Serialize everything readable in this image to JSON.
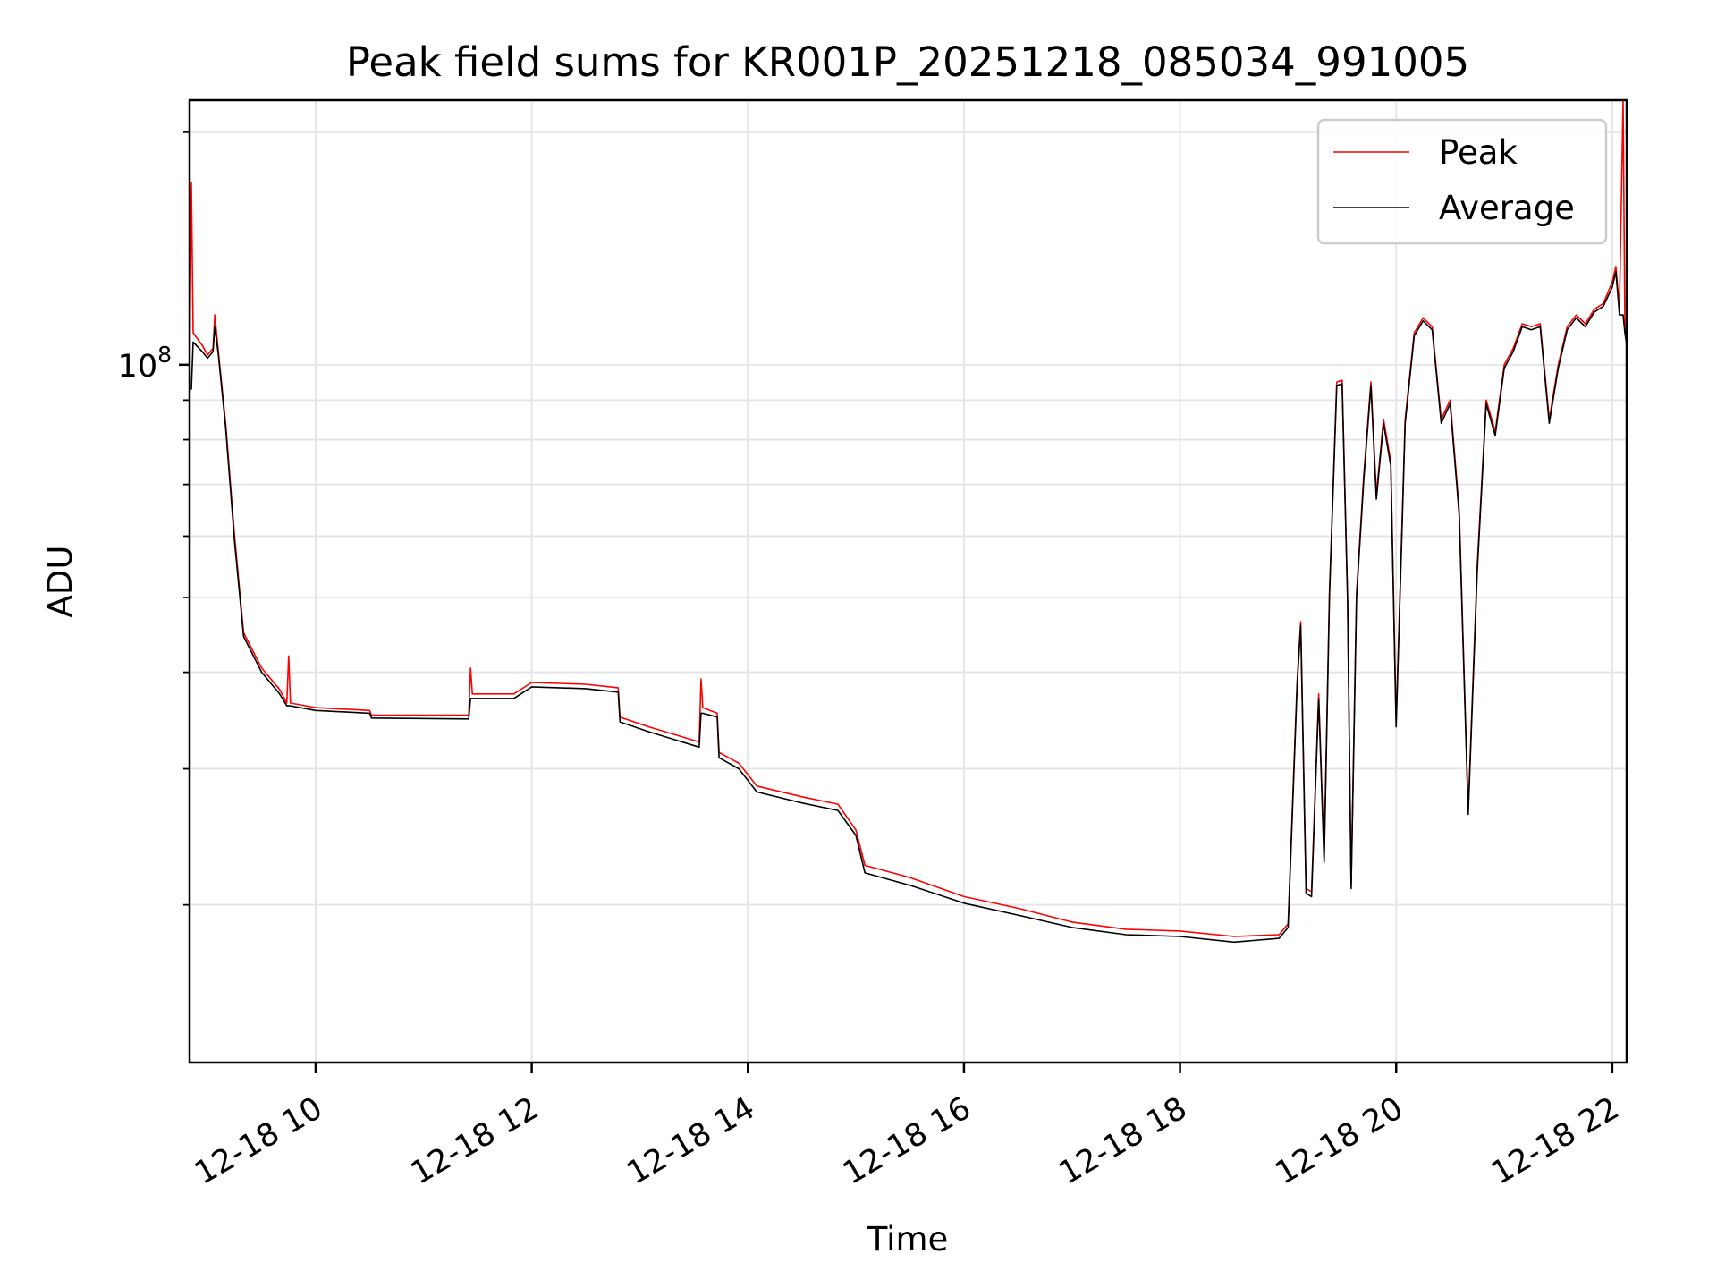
{
  "chart_data": {
    "type": "line",
    "title": "Peak field sums for KR001P_20251218_085034_991005",
    "xlabel": "Time",
    "ylabel": "ADU",
    "y_scale": "log",
    "grid": true,
    "legend_position": "top-right",
    "x_tick_labels": [
      "12-18 10",
      "12-18 12",
      "12-18 14",
      "12-18 16",
      "12-18 18",
      "12-18 20",
      "12-18 22"
    ],
    "y_tick_labels": [
      {
        "base": "10",
        "exponent": "8",
        "value": 100000000
      }
    ],
    "xlim": [
      "2025-12-18 08:50",
      "2025-12-18 22:08"
    ],
    "ylim": [
      12500000,
      220000000
    ],
    "series": [
      {
        "name": "Peak",
        "color": "#ff0000",
        "points": [
          [
            "2025-12-18 08:50",
            94000000
          ],
          [
            "2025-12-18 08:51",
            172000000
          ],
          [
            "2025-12-18 08:52",
            110000000
          ],
          [
            "2025-12-18 08:57",
            106000000
          ],
          [
            "2025-12-18 09:00",
            103000000
          ],
          [
            "2025-12-18 09:03",
            105000000
          ],
          [
            "2025-12-18 09:04",
            116000000
          ],
          [
            "2025-12-18 09:06",
            104000000
          ],
          [
            "2025-12-18 09:10",
            84000000
          ],
          [
            "2025-12-18 09:15",
            60000000
          ],
          [
            "2025-12-18 09:20",
            45000000
          ],
          [
            "2025-12-18 09:30",
            40500000
          ],
          [
            "2025-12-18 09:40",
            38000000
          ],
          [
            "2025-12-18 09:44",
            36500000
          ],
          [
            "2025-12-18 09:45",
            42000000
          ],
          [
            "2025-12-18 09:46",
            36500000
          ],
          [
            "2025-12-18 10:00",
            36000000
          ],
          [
            "2025-12-18 10:30",
            35700000
          ],
          [
            "2025-12-18 10:31",
            35200000
          ],
          [
            "2025-12-18 11:25",
            35200000
          ],
          [
            "2025-12-18 11:26",
            40500000
          ],
          [
            "2025-12-18 11:27",
            37500000
          ],
          [
            "2025-12-18 11:50",
            37500000
          ],
          [
            "2025-12-18 12:00",
            38800000
          ],
          [
            "2025-12-18 12:30",
            38600000
          ],
          [
            "2025-12-18 12:48",
            38200000
          ],
          [
            "2025-12-18 12:49",
            35000000
          ],
          [
            "2025-12-18 13:05",
            34000000
          ],
          [
            "2025-12-18 13:33",
            32500000
          ],
          [
            "2025-12-18 13:34",
            39200000
          ],
          [
            "2025-12-18 13:35",
            36000000
          ],
          [
            "2025-12-18 13:43",
            35400000
          ],
          [
            "2025-12-18 13:44",
            31500000
          ],
          [
            "2025-12-18 13:55",
            30500000
          ],
          [
            "2025-12-18 14:05",
            28500000
          ],
          [
            "2025-12-18 14:30",
            27600000
          ],
          [
            "2025-12-18 14:50",
            27000000
          ],
          [
            "2025-12-18 15:00",
            25000000
          ],
          [
            "2025-12-18 15:05",
            22500000
          ],
          [
            "2025-12-18 15:30",
            21700000
          ],
          [
            "2025-12-18 16:00",
            20500000
          ],
          [
            "2025-12-18 16:30",
            19800000
          ],
          [
            "2025-12-18 17:00",
            19000000
          ],
          [
            "2025-12-18 17:30",
            18600000
          ],
          [
            "2025-12-18 18:00",
            18500000
          ],
          [
            "2025-12-18 18:30",
            18200000
          ],
          [
            "2025-12-18 18:55",
            18300000
          ],
          [
            "2025-12-18 19:00",
            18900000
          ],
          [
            "2025-12-18 19:05",
            39000000
          ],
          [
            "2025-12-18 19:07",
            46500000
          ],
          [
            "2025-12-18 19:10",
            21000000
          ],
          [
            "2025-12-18 19:13",
            20800000
          ],
          [
            "2025-12-18 19:17",
            37500000
          ],
          [
            "2025-12-18 19:20",
            23000000
          ],
          [
            "2025-12-18 19:23",
            51000000
          ],
          [
            "2025-12-18 19:27",
            95000000
          ],
          [
            "2025-12-18 19:30",
            95500000
          ],
          [
            "2025-12-18 19:33",
            50000000
          ],
          [
            "2025-12-18 19:35",
            21200000
          ],
          [
            "2025-12-18 19:38",
            50500000
          ],
          [
            "2025-12-18 19:42",
            72000000
          ],
          [
            "2025-12-18 19:46",
            95000000
          ],
          [
            "2025-12-18 19:49",
            68000000
          ],
          [
            "2025-12-18 19:53",
            85000000
          ],
          [
            "2025-12-18 19:57",
            75000000
          ],
          [
            "2025-12-18 20:00",
            34500000
          ],
          [
            "2025-12-18 20:05",
            85000000
          ],
          [
            "2025-12-18 20:10",
            110000000
          ],
          [
            "2025-12-18 20:15",
            115000000
          ],
          [
            "2025-12-18 20:20",
            112000000
          ],
          [
            "2025-12-18 20:25",
            85000000
          ],
          [
            "2025-12-18 20:30",
            90000000
          ],
          [
            "2025-12-18 20:35",
            65000000
          ],
          [
            "2025-12-18 20:40",
            26500000
          ],
          [
            "2025-12-18 20:45",
            55000000
          ],
          [
            "2025-12-18 20:50",
            90000000
          ],
          [
            "2025-12-18 20:55",
            82000000
          ],
          [
            "2025-12-18 21:00",
            100000000
          ],
          [
            "2025-12-18 21:05",
            105000000
          ],
          [
            "2025-12-18 21:10",
            113000000
          ],
          [
            "2025-12-18 21:15",
            112000000
          ],
          [
            "2025-12-18 21:20",
            113000000
          ],
          [
            "2025-12-18 21:25",
            85000000
          ],
          [
            "2025-12-18 21:30",
            100000000
          ],
          [
            "2025-12-18 21:35",
            112000000
          ],
          [
            "2025-12-18 21:40",
            116000000
          ],
          [
            "2025-12-18 21:45",
            113000000
          ],
          [
            "2025-12-18 21:50",
            118000000
          ],
          [
            "2025-12-18 21:55",
            120000000
          ],
          [
            "2025-12-18 22:00",
            128000000
          ],
          [
            "2025-12-18 22:02",
            134000000
          ],
          [
            "2025-12-18 22:04",
            118000000
          ],
          [
            "2025-12-18 22:06",
            220000000
          ],
          [
            "2025-12-18 22:07",
            112000000
          ],
          [
            "2025-12-18 22:08",
            108000000
          ]
        ]
      },
      {
        "name": "Average",
        "color": "#000000",
        "points": [
          [
            "2025-12-18 08:50",
            93000000
          ],
          [
            "2025-12-18 08:51",
            93000000
          ],
          [
            "2025-12-18 08:52",
            107000000
          ],
          [
            "2025-12-18 08:57",
            104000000
          ],
          [
            "2025-12-18 09:00",
            102000000
          ],
          [
            "2025-12-18 09:03",
            104000000
          ],
          [
            "2025-12-18 09:04",
            112000000
          ],
          [
            "2025-12-18 09:06",
            103000000
          ],
          [
            "2025-12-18 09:10",
            83000000
          ],
          [
            "2025-12-18 09:15",
            59000000
          ],
          [
            "2025-12-18 09:20",
            44500000
          ],
          [
            "2025-12-18 09:30",
            40000000
          ],
          [
            "2025-12-18 09:40",
            37500000
          ],
          [
            "2025-12-18 09:44",
            36200000
          ],
          [
            "2025-12-18 09:45",
            36200000
          ],
          [
            "2025-12-18 09:46",
            36200000
          ],
          [
            "2025-12-18 10:00",
            35700000
          ],
          [
            "2025-12-18 10:30",
            35400000
          ],
          [
            "2025-12-18 10:31",
            34900000
          ],
          [
            "2025-12-18 11:25",
            34800000
          ],
          [
            "2025-12-18 11:26",
            37000000
          ],
          [
            "2025-12-18 11:27",
            37000000
          ],
          [
            "2025-12-18 11:50",
            37000000
          ],
          [
            "2025-12-18 12:00",
            38300000
          ],
          [
            "2025-12-18 12:30",
            38100000
          ],
          [
            "2025-12-18 12:48",
            37700000
          ],
          [
            "2025-12-18 12:49",
            34500000
          ],
          [
            "2025-12-18 13:05",
            33500000
          ],
          [
            "2025-12-18 13:33",
            32000000
          ],
          [
            "2025-12-18 13:34",
            35400000
          ],
          [
            "2025-12-18 13:35",
            35400000
          ],
          [
            "2025-12-18 13:43",
            35000000
          ],
          [
            "2025-12-18 13:44",
            31000000
          ],
          [
            "2025-12-18 13:55",
            30000000
          ],
          [
            "2025-12-18 14:05",
            28000000
          ],
          [
            "2025-12-18 14:30",
            27100000
          ],
          [
            "2025-12-18 14:50",
            26500000
          ],
          [
            "2025-12-18 15:00",
            24600000
          ],
          [
            "2025-12-18 15:05",
            22000000
          ],
          [
            "2025-12-18 15:30",
            21200000
          ],
          [
            "2025-12-18 16:00",
            20100000
          ],
          [
            "2025-12-18 16:30",
            19400000
          ],
          [
            "2025-12-18 17:00",
            18700000
          ],
          [
            "2025-12-18 17:30",
            18300000
          ],
          [
            "2025-12-18 18:00",
            18200000
          ],
          [
            "2025-12-18 18:30",
            17900000
          ],
          [
            "2025-12-18 18:55",
            18100000
          ],
          [
            "2025-12-18 19:00",
            18700000
          ],
          [
            "2025-12-18 19:05",
            38500000
          ],
          [
            "2025-12-18 19:07",
            46000000
          ],
          [
            "2025-12-18 19:10",
            20700000
          ],
          [
            "2025-12-18 19:13",
            20500000
          ],
          [
            "2025-12-18 19:17",
            37000000
          ],
          [
            "2025-12-18 19:20",
            22700000
          ],
          [
            "2025-12-18 19:23",
            50500000
          ],
          [
            "2025-12-18 19:27",
            94000000
          ],
          [
            "2025-12-18 19:30",
            94500000
          ],
          [
            "2025-12-18 19:33",
            49500000
          ],
          [
            "2025-12-18 19:35",
            21000000
          ],
          [
            "2025-12-18 19:38",
            50000000
          ],
          [
            "2025-12-18 19:42",
            71000000
          ],
          [
            "2025-12-18 19:46",
            94000000
          ],
          [
            "2025-12-18 19:49",
            67000000
          ],
          [
            "2025-12-18 19:53",
            84000000
          ],
          [
            "2025-12-18 19:57",
            74000000
          ],
          [
            "2025-12-18 20:00",
            34000000
          ],
          [
            "2025-12-18 20:05",
            84000000
          ],
          [
            "2025-12-18 20:10",
            109000000
          ],
          [
            "2025-12-18 20:15",
            114000000
          ],
          [
            "2025-12-18 20:20",
            111000000
          ],
          [
            "2025-12-18 20:25",
            84000000
          ],
          [
            "2025-12-18 20:30",
            89000000
          ],
          [
            "2025-12-18 20:35",
            64000000
          ],
          [
            "2025-12-18 20:40",
            26200000
          ],
          [
            "2025-12-18 20:45",
            54000000
          ],
          [
            "2025-12-18 20:50",
            89000000
          ],
          [
            "2025-12-18 20:55",
            81000000
          ],
          [
            "2025-12-18 21:00",
            99000000
          ],
          [
            "2025-12-18 21:05",
            104000000
          ],
          [
            "2025-12-18 21:10",
            112000000
          ],
          [
            "2025-12-18 21:15",
            111000000
          ],
          [
            "2025-12-18 21:20",
            112000000
          ],
          [
            "2025-12-18 21:25",
            84000000
          ],
          [
            "2025-12-18 21:30",
            99000000
          ],
          [
            "2025-12-18 21:35",
            111000000
          ],
          [
            "2025-12-18 21:40",
            115000000
          ],
          [
            "2025-12-18 21:45",
            112000000
          ],
          [
            "2025-12-18 21:50",
            117000000
          ],
          [
            "2025-12-18 21:55",
            119000000
          ],
          [
            "2025-12-18 22:00",
            126000000
          ],
          [
            "2025-12-18 22:02",
            132000000
          ],
          [
            "2025-12-18 22:04",
            116000000
          ],
          [
            "2025-12-18 22:06",
            116000000
          ],
          [
            "2025-12-18 22:07",
            110000000
          ],
          [
            "2025-12-18 22:08",
            106000000
          ]
        ]
      }
    ]
  }
}
